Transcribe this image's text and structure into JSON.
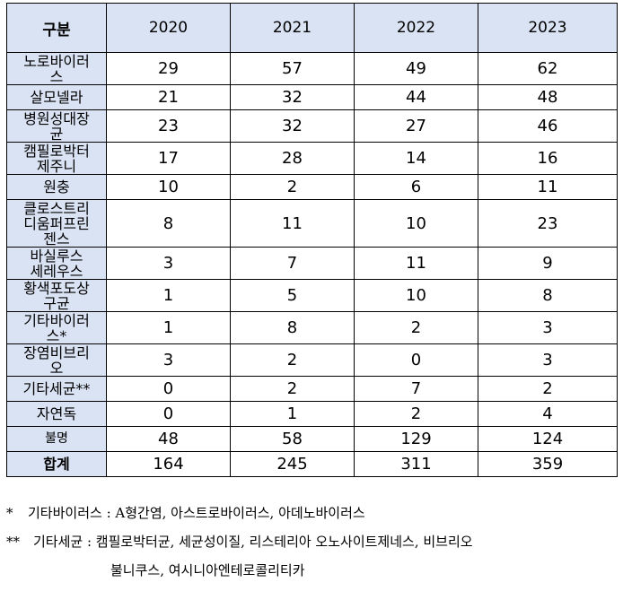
{
  "table": {
    "header": [
      "구분",
      "2020",
      "2021",
      "2022",
      "2023"
    ],
    "rows": [
      {
        "label": [
          "노로바이러",
          "스"
        ],
        "values": [
          "29",
          "57",
          "49",
          "62"
        ]
      },
      {
        "label": [
          "살모넬라"
        ],
        "values": [
          "21",
          "32",
          "44",
          "48"
        ]
      },
      {
        "label": [
          "병원성대장",
          "균"
        ],
        "values": [
          "23",
          "32",
          "27",
          "46"
        ]
      },
      {
        "label": [
          "캠필로박터",
          "제주니"
        ],
        "values": [
          "17",
          "28",
          "14",
          "16"
        ]
      },
      {
        "label": [
          "원충"
        ],
        "values": [
          "10",
          "2",
          "6",
          "11"
        ]
      },
      {
        "label": [
          "클로스트리",
          "디움퍼프린",
          "젠스"
        ],
        "values": [
          "8",
          "11",
          "10",
          "23"
        ]
      },
      {
        "label": [
          "바실루스",
          "세레우스"
        ],
        "values": [
          "3",
          "7",
          "11",
          "9"
        ]
      },
      {
        "label": [
          "황색포도상",
          "구균"
        ],
        "values": [
          "1",
          "5",
          "10",
          "8"
        ]
      },
      {
        "label": [
          "기타바이러",
          "스*"
        ],
        "values": [
          "1",
          "8",
          "2",
          "3"
        ]
      },
      {
        "label": [
          "장염비브리",
          "오"
        ],
        "values": [
          "3",
          "2",
          "0",
          "3"
        ]
      },
      {
        "label": [
          "기타세균**"
        ],
        "values": [
          "0",
          "2",
          "7",
          "2"
        ]
      },
      {
        "label": [
          "자연독"
        ],
        "values": [
          "0",
          "1",
          "2",
          "4"
        ]
      },
      {
        "label": [
          "불명"
        ],
        "values": [
          "48",
          "58",
          "129",
          "124"
        ]
      },
      {
        "label": [
          "합계"
        ],
        "values": [
          "164",
          "245",
          "311",
          "359"
        ]
      }
    ]
  },
  "notes": {
    "note1_mark": "*",
    "note1_text": "기타바이러스 : A형간염, 아스트로바이러스, 아데노바이러스",
    "note2_mark": "**",
    "note2_text": "기타세균 : 캠필로박터균, 세균성이질, 리스테리아 오노사이트제네스, 비브리오",
    "note2_cont": "불니쿠스, 여시니아엔테로콜리티카"
  }
}
